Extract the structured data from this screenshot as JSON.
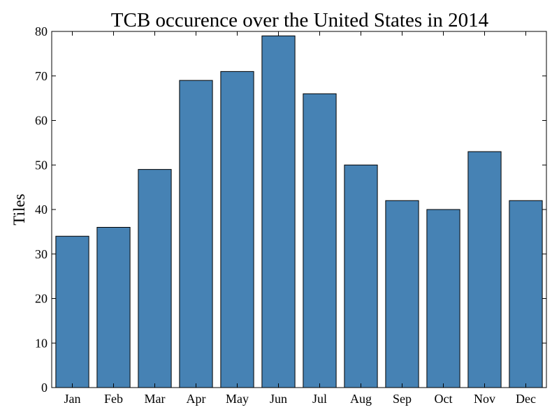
{
  "chart_data": {
    "type": "bar",
    "title": "TCB occurence over the United States in 2014",
    "xlabel": "",
    "ylabel": "Tiles",
    "categories": [
      "Jan",
      "Feb",
      "Mar",
      "Apr",
      "May",
      "Jun",
      "Jul",
      "Aug",
      "Sep",
      "Oct",
      "Nov",
      "Dec"
    ],
    "values": [
      34,
      36,
      49,
      69,
      71,
      79,
      66,
      50,
      42,
      40,
      53,
      42
    ],
    "ylim": [
      0,
      80
    ],
    "yticks": [
      "0",
      "10",
      "20",
      "30",
      "40",
      "50",
      "60",
      "70",
      "80"
    ],
    "grid": false,
    "bar_color": "#4682b4",
    "edge_color": "#000000"
  }
}
